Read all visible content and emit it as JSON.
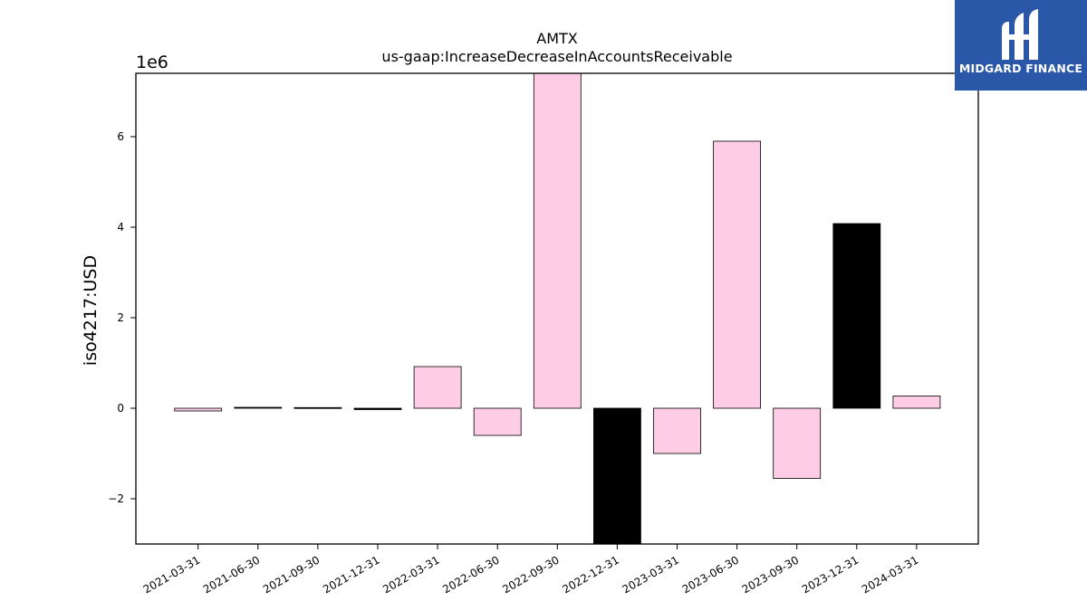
{
  "chart_data": {
    "type": "bar",
    "title": "AMTX",
    "subtitle": "us-gaap:IncreaseDecreaseInAccountsReceivable",
    "xlabel": "",
    "ylabel": "iso4217:USD",
    "scale_label": "1e6",
    "ylim": [
      -3000000,
      7400000
    ],
    "yticks": [
      -2000000,
      0,
      2000000,
      4000000,
      6000000
    ],
    "ytick_labels": [
      "−2",
      "0",
      "2",
      "4",
      "6"
    ],
    "grid": false,
    "categories": [
      "2021-03-31",
      "2021-06-30",
      "2021-09-30",
      "2021-12-31",
      "2022-03-31",
      "2022-06-30",
      "2022-09-30",
      "2022-12-31",
      "2023-03-31",
      "2023-06-30",
      "2023-09-30",
      "2023-12-31",
      "2024-03-31"
    ],
    "values": [
      -60000,
      20000,
      15000,
      -30000,
      920000,
      -600000,
      7400000,
      -3000000,
      -1000000,
      5900000,
      -1550000,
      4080000,
      270000
    ],
    "bar_colors": [
      "#ffcce6",
      "#000000",
      "#000000",
      "#000000",
      "#ffcce6",
      "#ffcce6",
      "#ffcce6",
      "#000000",
      "#ffcce6",
      "#ffcce6",
      "#ffcce6",
      "#000000",
      "#ffcce6"
    ]
  },
  "logo": {
    "text": "MIDGARD FINANCE",
    "icon": "midgard-logo-icon",
    "background": "#2b57a8"
  }
}
